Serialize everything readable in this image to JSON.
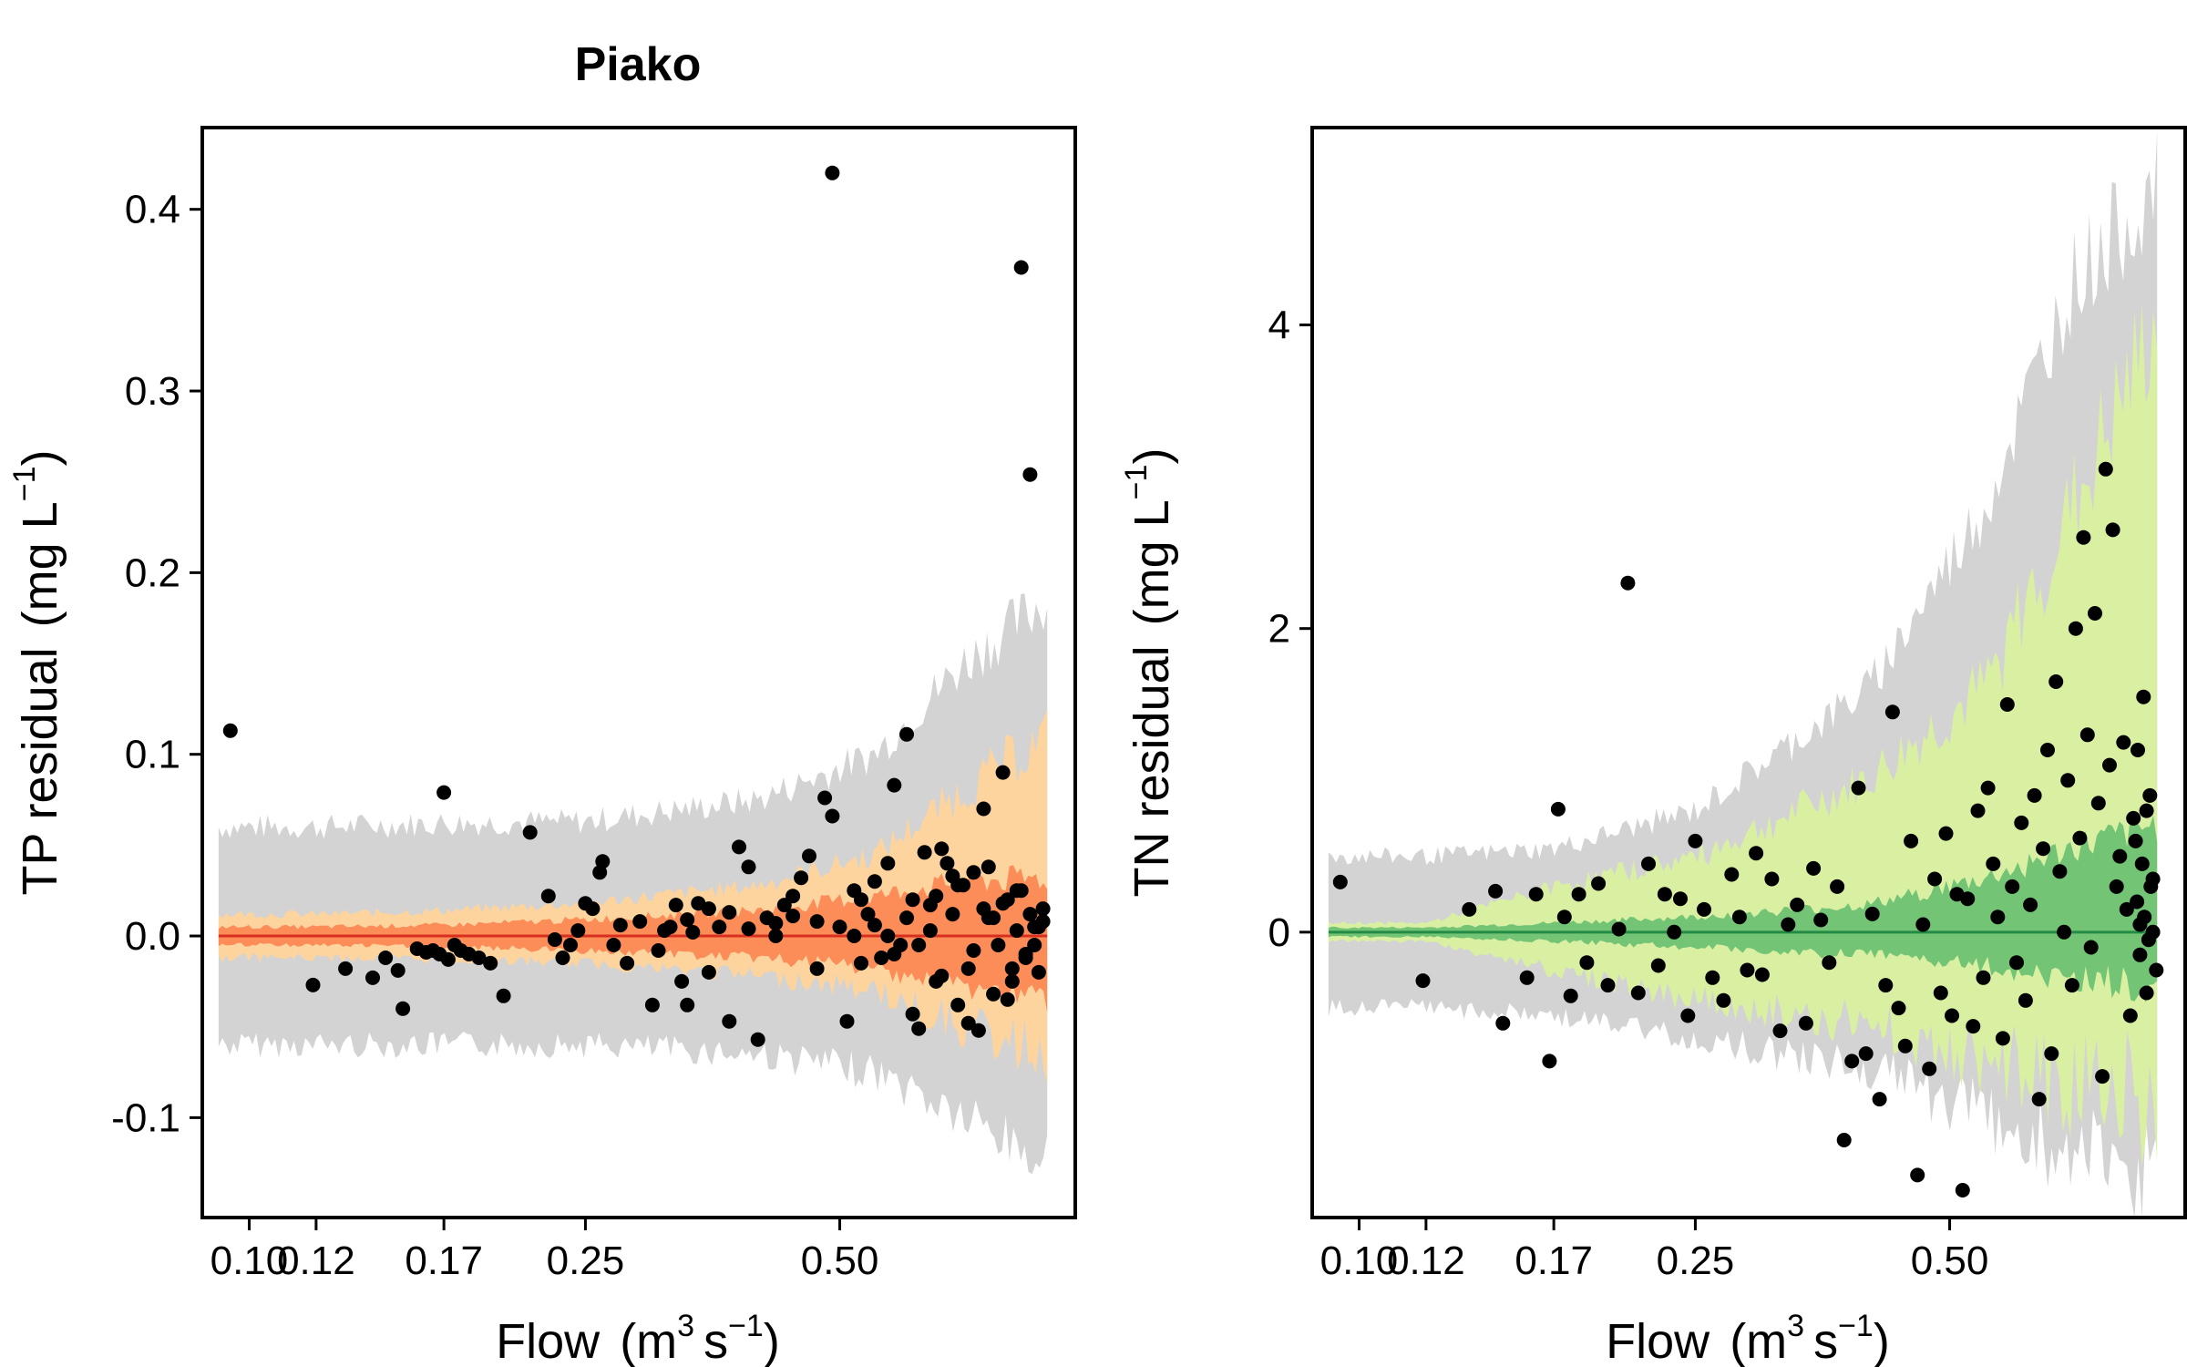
{
  "chart_data": [
    {
      "type": "scatter",
      "title": "Piako",
      "xlabel": "Flow",
      "xlabel_unit": "m",
      "xlabel_exp1": "3",
      "xlabel_unit2": "s",
      "xlabel_exp2": "−1",
      "ylabel": "TP residual",
      "ylabel_unit": "mg L",
      "ylabel_exp": "−1",
      "x_scale": "log",
      "xlim": [
        0.088,
        0.95
      ],
      "ylim": [
        -0.155,
        0.445
      ],
      "x_ticks": [
        0.1,
        0.12,
        0.17,
        0.25,
        0.5
      ],
      "x_tick_labels": [
        "0.10",
        "0.12",
        "0.17",
        "0.25",
        "0.50"
      ],
      "y_ticks": [
        -0.1,
        0.0,
        0.1,
        0.2,
        0.3,
        0.4
      ],
      "y_tick_labels": [
        "-0.1",
        "0.0",
        "0.1",
        "0.2",
        "0.3",
        "0.4"
      ],
      "grid": false,
      "colors": {
        "outer_band": "#d3d3d3",
        "mid_band": "#fdd49e",
        "inner_band": "#fc8d59",
        "line": "#d7301f",
        "points": "#000000"
      },
      "band_outer": {
        "x_range": [
          0.092,
          0.88
        ],
        "lower": [
          -0.06,
          -0.06,
          -0.06,
          -0.06,
          -0.065,
          -0.075,
          -0.1,
          -0.125
        ],
        "upper": [
          0.06,
          0.06,
          0.062,
          0.063,
          0.075,
          0.1,
          0.15,
          0.185
        ],
        "at_x": [
          0.092,
          0.12,
          0.17,
          0.25,
          0.4,
          0.55,
          0.7,
          0.88
        ]
      },
      "band_mid": {
        "lower": [
          -0.012,
          -0.012,
          -0.013,
          -0.015,
          -0.022,
          -0.03,
          -0.05,
          -0.065
        ],
        "upper": [
          0.012,
          0.012,
          0.014,
          0.018,
          0.028,
          0.045,
          0.08,
          0.11
        ]
      },
      "band_inner": {
        "lower": [
          -0.005,
          -0.005,
          -0.006,
          -0.008,
          -0.012,
          -0.018,
          -0.028,
          -0.035
        ],
        "upper": [
          0.005,
          0.005,
          0.006,
          0.009,
          0.014,
          0.022,
          0.03,
          0.032
        ]
      },
      "points": {
        "x": [
          0.095,
          0.119,
          0.13,
          0.14,
          0.145,
          0.15,
          0.152,
          0.158,
          0.162,
          0.165,
          0.168,
          0.17,
          0.172,
          0.175,
          0.178,
          0.182,
          0.187,
          0.193,
          0.2,
          0.215,
          0.226,
          0.23,
          0.235,
          0.24,
          0.245,
          0.25,
          0.255,
          0.26,
          0.262,
          0.27,
          0.275,
          0.28,
          0.29,
          0.3,
          0.305,
          0.31,
          0.315,
          0.32,
          0.325,
          0.33,
          0.335,
          0.34,
          0.35,
          0.36,
          0.37,
          0.38,
          0.39,
          0.4,
          0.41,
          0.42,
          0.43,
          0.44,
          0.45,
          0.46,
          0.47,
          0.48,
          0.49,
          0.5,
          0.51,
          0.52,
          0.53,
          0.54,
          0.55,
          0.56,
          0.57,
          0.58,
          0.59,
          0.6,
          0.61,
          0.62,
          0.63,
          0.64,
          0.65,
          0.66,
          0.67,
          0.68,
          0.69,
          0.7,
          0.71,
          0.72,
          0.73,
          0.74,
          0.75,
          0.76,
          0.77,
          0.78,
          0.79,
          0.8,
          0.81,
          0.82,
          0.83,
          0.84,
          0.85,
          0.86,
          0.87,
          0.49,
          0.82,
          0.84,
          0.65,
          0.6,
          0.55,
          0.53,
          0.57,
          0.62,
          0.68,
          0.72,
          0.74,
          0.76,
          0.78,
          0.8,
          0.83,
          0.86,
          0.58,
          0.61,
          0.64,
          0.66,
          0.69,
          0.71,
          0.75,
          0.79,
          0.81,
          0.85,
          0.87,
          0.52,
          0.47,
          0.44,
          0.42,
          0.39,
          0.37,
          0.35,
          0.33
        ],
        "y": [
          0.113,
          -0.027,
          -0.018,
          -0.023,
          -0.012,
          -0.019,
          -0.04,
          -0.007,
          -0.009,
          -0.008,
          -0.01,
          0.079,
          -0.013,
          -0.005,
          -0.008,
          -0.01,
          -0.012,
          -0.015,
          -0.033,
          0.057,
          0.022,
          -0.002,
          -0.012,
          -0.005,
          0.003,
          0.018,
          0.015,
          0.035,
          0.041,
          -0.005,
          0.006,
          -0.015,
          0.008,
          -0.038,
          -0.008,
          0.003,
          0.005,
          0.017,
          -0.025,
          -0.038,
          0.002,
          0.018,
          0.015,
          0.005,
          -0.047,
          0.049,
          0.038,
          -0.057,
          0.01,
          0.007,
          0.017,
          0.022,
          0.032,
          0.044,
          -0.018,
          0.076,
          0.066,
          0.005,
          -0.047,
          0.025,
          0.02,
          0.012,
          0.03,
          -0.012,
          0.04,
          0.083,
          -0.005,
          0.111,
          -0.043,
          -0.051,
          0.046,
          0.017,
          -0.025,
          0.048,
          0.04,
          0.033,
          -0.038,
          0.028,
          -0.048,
          0.035,
          -0.052,
          0.07,
          0.038,
          0.01,
          -0.005,
          0.09,
          0.02,
          -0.018,
          0.003,
          0.025,
          -0.01,
          0.012,
          0.005,
          -0.02,
          0.008,
          0.42,
          0.368,
          0.254,
          0.022,
          0.01,
          0.006,
          -0.015,
          0.0,
          -0.005,
          0.012,
          -0.008,
          0.015,
          -0.032,
          0.018,
          -0.025,
          -0.012,
          0.005,
          -0.01,
          0.02,
          0.003,
          -0.022,
          0.028,
          -0.018,
          0.01,
          -0.035,
          0.025,
          -0.005,
          0.015,
          0.0,
          0.008,
          0.011,
          0.0,
          0.004,
          0.013,
          -0.02,
          0.009
        ]
      }
    },
    {
      "type": "scatter",
      "title": "",
      "xlabel": "Flow",
      "xlabel_unit": "m",
      "xlabel_exp1": "3",
      "xlabel_unit2": "s",
      "xlabel_exp2": "−1",
      "ylabel": "TN residual",
      "ylabel_unit": "mg L",
      "ylabel_exp": "−1",
      "x_scale": "log",
      "xlim": [
        0.088,
        0.95
      ],
      "ylim": [
        -1.88,
        5.3
      ],
      "x_ticks": [
        0.1,
        0.12,
        0.17,
        0.25,
        0.5
      ],
      "x_tick_labels": [
        "0.10",
        "0.12",
        "0.17",
        "0.25",
        "0.50"
      ],
      "y_ticks": [
        0,
        2,
        4
      ],
      "y_tick_labels": [
        "0",
        "2",
        "4"
      ],
      "grid": false,
      "colors": {
        "outer_band": "#d3d3d3",
        "mid_band": "#d9f0a3",
        "inner_band": "#74c476",
        "line": "#238b45",
        "points": "#000000"
      },
      "band_outer": {
        "x_range": [
          0.092,
          0.88
        ],
        "lower": [
          -0.5,
          -0.5,
          -0.55,
          -0.7,
          -0.9,
          -1.2,
          -1.5,
          -1.6
        ],
        "upper": [
          0.5,
          0.5,
          0.55,
          0.8,
          1.6,
          2.8,
          4.3,
          4.9
        ],
        "at_x": [
          0.092,
          0.12,
          0.17,
          0.25,
          0.4,
          0.55,
          0.7,
          0.88
        ]
      },
      "band_mid": {
        "lower": [
          -0.06,
          -0.06,
          -0.25,
          -0.45,
          -0.6,
          -0.85,
          -1.0,
          -1.1
        ],
        "upper": [
          0.06,
          0.06,
          0.3,
          0.5,
          1.0,
          1.6,
          2.8,
          4.0
        ]
      },
      "band_inner": {
        "lower": [
          -0.03,
          -0.03,
          -0.06,
          -0.1,
          -0.15,
          -0.22,
          -0.3,
          -0.35
        ],
        "upper": [
          0.03,
          0.03,
          0.06,
          0.1,
          0.18,
          0.35,
          0.55,
          0.7
        ]
      },
      "points": {
        "x": [
          0.095,
          0.119,
          0.135,
          0.145,
          0.148,
          0.158,
          0.162,
          0.168,
          0.172,
          0.175,
          0.178,
          0.182,
          0.186,
          0.192,
          0.197,
          0.203,
          0.208,
          0.214,
          0.22,
          0.226,
          0.23,
          0.236,
          0.24,
          0.245,
          0.25,
          0.256,
          0.262,
          0.27,
          0.276,
          0.282,
          0.288,
          0.295,
          0.3,
          0.308,
          0.315,
          0.322,
          0.33,
          0.338,
          0.345,
          0.352,
          0.36,
          0.368,
          0.375,
          0.383,
          0.39,
          0.398,
          0.405,
          0.413,
          0.42,
          0.428,
          0.435,
          0.443,
          0.45,
          0.458,
          0.465,
          0.473,
          0.48,
          0.488,
          0.495,
          0.503,
          0.51,
          0.518,
          0.525,
          0.533,
          0.54,
          0.548,
          0.555,
          0.563,
          0.57,
          0.578,
          0.585,
          0.593,
          0.6,
          0.608,
          0.615,
          0.623,
          0.63,
          0.638,
          0.645,
          0.653,
          0.66,
          0.668,
          0.675,
          0.683,
          0.69,
          0.698,
          0.705,
          0.713,
          0.72,
          0.728,
          0.735,
          0.743,
          0.75,
          0.758,
          0.765,
          0.773,
          0.78,
          0.788,
          0.795,
          0.803,
          0.81,
          0.818,
          0.825,
          0.833,
          0.84,
          0.848,
          0.855,
          0.863,
          0.87,
          0.878,
          0.83,
          0.835,
          0.84,
          0.845,
          0.85,
          0.855,
          0.86,
          0.865,
          0.87
        ],
        "y": [
          0.33,
          -0.32,
          0.15,
          0.27,
          -0.6,
          -0.3,
          0.25,
          -0.85,
          0.81,
          0.1,
          -0.42,
          0.25,
          -0.2,
          0.32,
          -0.35,
          0.02,
          2.3,
          -0.4,
          0.45,
          -0.22,
          0.25,
          0.0,
          0.22,
          -0.55,
          0.6,
          0.15,
          -0.3,
          -0.45,
          0.38,
          0.1,
          -0.25,
          0.52,
          -0.28,
          0.35,
          -0.65,
          0.05,
          0.18,
          -0.6,
          0.42,
          0.08,
          -0.2,
          0.3,
          -1.37,
          -0.85,
          0.95,
          -0.8,
          0.12,
          -1.1,
          -0.35,
          1.45,
          -0.5,
          -0.75,
          0.6,
          -1.6,
          0.05,
          -0.9,
          0.35,
          -0.4,
          0.65,
          -0.55,
          0.25,
          -1.7,
          0.22,
          -0.62,
          0.8,
          -0.3,
          0.95,
          0.45,
          0.1,
          -0.7,
          1.5,
          0.3,
          -0.2,
          0.72,
          -0.45,
          0.18,
          0.9,
          -1.1,
          0.55,
          1.2,
          -0.8,
          1.65,
          0.4,
          0.0,
          1.0,
          -0.35,
          2.0,
          0.62,
          2.6,
          1.3,
          -0.1,
          2.1,
          0.85,
          -0.95,
          3.05,
          1.1,
          2.65,
          0.3,
          0.5,
          1.25,
          0.15,
          -0.55,
          0.75,
          0.2,
          0.05,
          1.55,
          -0.4,
          0.9,
          0.35,
          -0.25,
          0.6,
          1.2,
          -0.15,
          0.45,
          0.1,
          0.8,
          -0.05,
          0.3,
          0.0
        ]
      }
    }
  ]
}
